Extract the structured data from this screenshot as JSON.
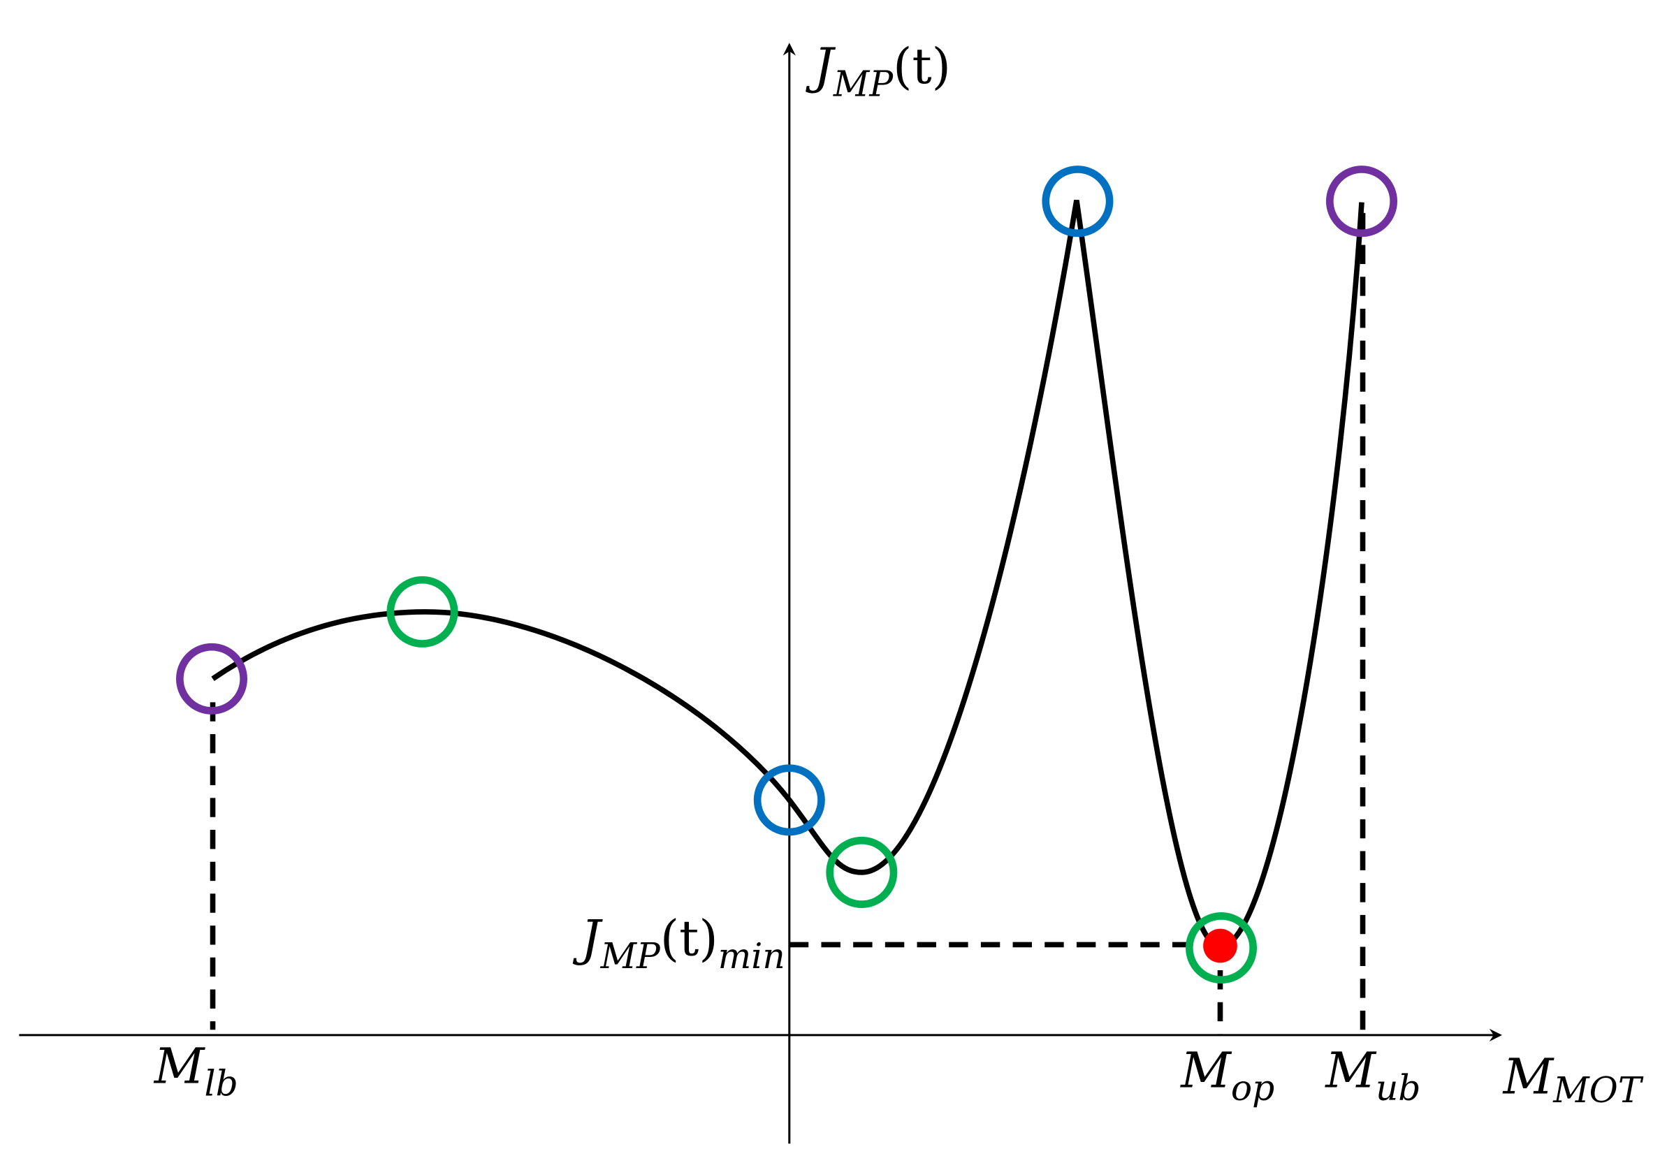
{
  "labels": {
    "y_axis": {
      "base": "J",
      "sub": "MP",
      "suffix": "(t)"
    },
    "x_axis": {
      "base": "M",
      "sub": "MOT"
    },
    "lower_bound": {
      "base": "M",
      "sub": "lb"
    },
    "optimum": {
      "base": "M",
      "sub": "op"
    },
    "upper_bound": {
      "base": "M",
      "sub": "ub"
    },
    "minimum": {
      "base": "J",
      "sub": "MP",
      "suffix": "(t)",
      "sub2": "min"
    }
  }
}
